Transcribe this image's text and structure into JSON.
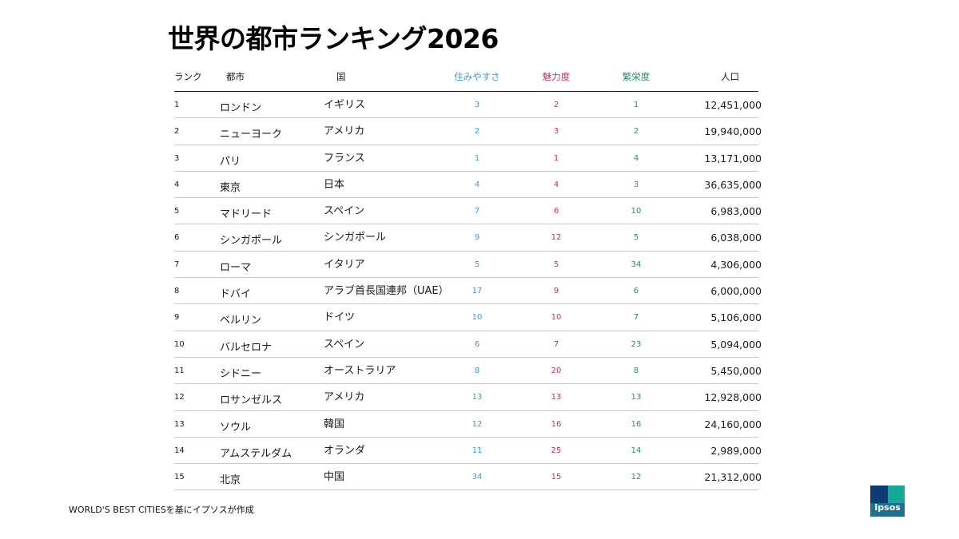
{
  "title": "世界の都市ランキング2026",
  "colors": {
    "livability": "#3a9bd5",
    "attractiveness": "#c0306a",
    "prosperity": "#2a8a6a"
  },
  "table": {
    "headers": {
      "rank": "ランク",
      "city": "都市",
      "country": "国",
      "livability": "住みやすさ",
      "attractiveness": "魅力度",
      "prosperity": "繁栄度",
      "population": "人口"
    },
    "rows": [
      {
        "rank": "1",
        "city": "ロンドン",
        "country": "イギリス",
        "livability": "3",
        "attractiveness": "2",
        "prosperity": "1",
        "population": "12,451,000"
      },
      {
        "rank": "2",
        "city": "ニューヨーク",
        "country": "アメリカ",
        "livability": "2",
        "attractiveness": "3",
        "prosperity": "2",
        "population": "19,940,000"
      },
      {
        "rank": "3",
        "city": "パリ",
        "country": "フランス",
        "livability": "1",
        "attractiveness": "1",
        "prosperity": "4",
        "population": "13,171,000"
      },
      {
        "rank": "4",
        "city": "東京",
        "country": "日本",
        "livability": "4",
        "attractiveness": "4",
        "prosperity": "3",
        "population": "36,635,000"
      },
      {
        "rank": "5",
        "city": "マドリード",
        "country": "スペイン",
        "livability": "7",
        "attractiveness": "6",
        "prosperity": "10",
        "population": "6,983,000"
      },
      {
        "rank": "6",
        "city": "シンガポール",
        "country": "シンガポール",
        "livability": "9",
        "attractiveness": "12",
        "prosperity": "5",
        "population": "6,038,000"
      },
      {
        "rank": "7",
        "city": "ローマ",
        "country": "イタリア",
        "livability": "5",
        "attractiveness": "5",
        "prosperity": "34",
        "population": "4,306,000"
      },
      {
        "rank": "8",
        "city": "ドバイ",
        "country": "アラブ首長国連邦（UAE）",
        "livability": "17",
        "attractiveness": "9",
        "prosperity": "6",
        "population": "6,000,000"
      },
      {
        "rank": "9",
        "city": "ベルリン",
        "country": "ドイツ",
        "livability": "10",
        "attractiveness": "10",
        "prosperity": "7",
        "population": "5,106,000"
      },
      {
        "rank": "10",
        "city": "バルセロナ",
        "country": "スペイン",
        "livability": "6",
        "attractiveness": "7",
        "prosperity": "23",
        "population": "5,094,000"
      },
      {
        "rank": "11",
        "city": "シドニー",
        "country": "オーストラリア",
        "livability": "8",
        "attractiveness": "20",
        "prosperity": "8",
        "population": "5,450,000"
      },
      {
        "rank": "12",
        "city": "ロサンゼルス",
        "country": "アメリカ",
        "livability": "13",
        "attractiveness": "13",
        "prosperity": "13",
        "population": "12,928,000"
      },
      {
        "rank": "13",
        "city": "ソウル",
        "country": "韓国",
        "livability": "12",
        "attractiveness": "16",
        "prosperity": "16",
        "population": "24,160,000"
      },
      {
        "rank": "14",
        "city": "アムステルダム",
        "country": "オランダ",
        "livability": "11",
        "attractiveness": "25",
        "prosperity": "14",
        "population": "2,989,000"
      },
      {
        "rank": "15",
        "city": "北京",
        "country": "中国",
        "livability": "34",
        "attractiveness": "15",
        "prosperity": "12",
        "population": "21,312,000"
      }
    ]
  },
  "source": "WORLD'S BEST CITIESを基にイプソスが作成",
  "logo": {
    "text": "Ipsos",
    "icon": "ipsos-logo"
  }
}
